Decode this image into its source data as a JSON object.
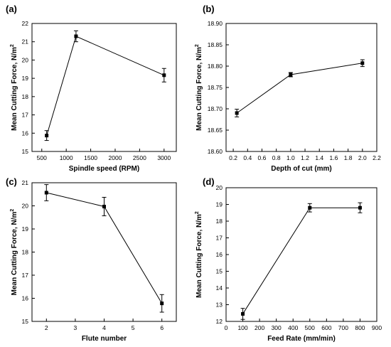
{
  "chart_data": [
    {
      "panel": "(a)",
      "type": "line",
      "xlabel": "Spindle speed (RPM)",
      "ylabel": "Mean Cutting Force, N/m",
      "ylabel_sup": "2",
      "xlim": [
        300,
        3250
      ],
      "ylim": [
        15,
        22
      ],
      "xticks": [
        500,
        1000,
        1500,
        2000,
        2500,
        3000
      ],
      "yticks": [
        15,
        16,
        17,
        18,
        19,
        20,
        21,
        22
      ],
      "x": [
        600,
        1200,
        3000
      ],
      "y": [
        15.87,
        21.3,
        19.17
      ],
      "err": [
        0.27,
        0.3,
        0.37
      ]
    },
    {
      "panel": "(b)",
      "type": "line",
      "xlabel": "Depth of cut (mm)",
      "ylabel": "Mean Cutting Force, N/m",
      "ylabel_sup": "2",
      "xlim": [
        0.1,
        2.2
      ],
      "ylim": [
        18.6,
        18.9
      ],
      "xticks": [
        0.2,
        0.4,
        0.6,
        0.8,
        1.0,
        1.2,
        1.4,
        1.6,
        1.8,
        2.0,
        2.2
      ],
      "xtick_labels": [
        "0.2",
        "0.4",
        "0.6",
        "0.8",
        "1.0",
        "1.2",
        "1.4",
        "1.6",
        "1.8",
        "2.0",
        "2.2"
      ],
      "yticks": [
        18.6,
        18.65,
        18.7,
        18.75,
        18.8,
        18.85,
        18.9
      ],
      "ytick_labels": [
        "18.60",
        "18.65",
        "18.70",
        "18.75",
        "18.80",
        "18.85",
        "18.90"
      ],
      "x": [
        0.25,
        1.0,
        2.0
      ],
      "y": [
        18.69,
        18.78,
        18.807
      ],
      "err": [
        0.009,
        0.005,
        0.008
      ]
    },
    {
      "panel": "(c)",
      "type": "line",
      "xlabel": "Flute number",
      "ylabel": "Mean Cutting Force, N/m",
      "ylabel_sup": "2",
      "xlim": [
        1.5,
        6.5
      ],
      "ylim": [
        15,
        21
      ],
      "xticks": [
        2,
        3,
        4,
        5,
        6
      ],
      "yticks": [
        15,
        16,
        17,
        18,
        19,
        20,
        21
      ],
      "x": [
        2,
        4,
        6
      ],
      "y": [
        20.57,
        19.97,
        15.78
      ],
      "err": [
        0.35,
        0.4,
        0.38
      ]
    },
    {
      "panel": "(d)",
      "type": "line",
      "xlabel": "Feed Rate (mm/min)",
      "ylabel": "Mean Cutting Force, N/m",
      "ylabel_sup": "2",
      "xlim": [
        0,
        900
      ],
      "ylim": [
        12,
        20
      ],
      "xticks": [
        0,
        100,
        200,
        300,
        400,
        500,
        600,
        700,
        800,
        900
      ],
      "yticks": [
        12,
        13,
        14,
        15,
        16,
        17,
        18,
        19,
        20
      ],
      "x": [
        100,
        500,
        800
      ],
      "y": [
        12.45,
        18.8,
        18.8
      ],
      "err": [
        0.33,
        0.25,
        0.3
      ]
    }
  ]
}
